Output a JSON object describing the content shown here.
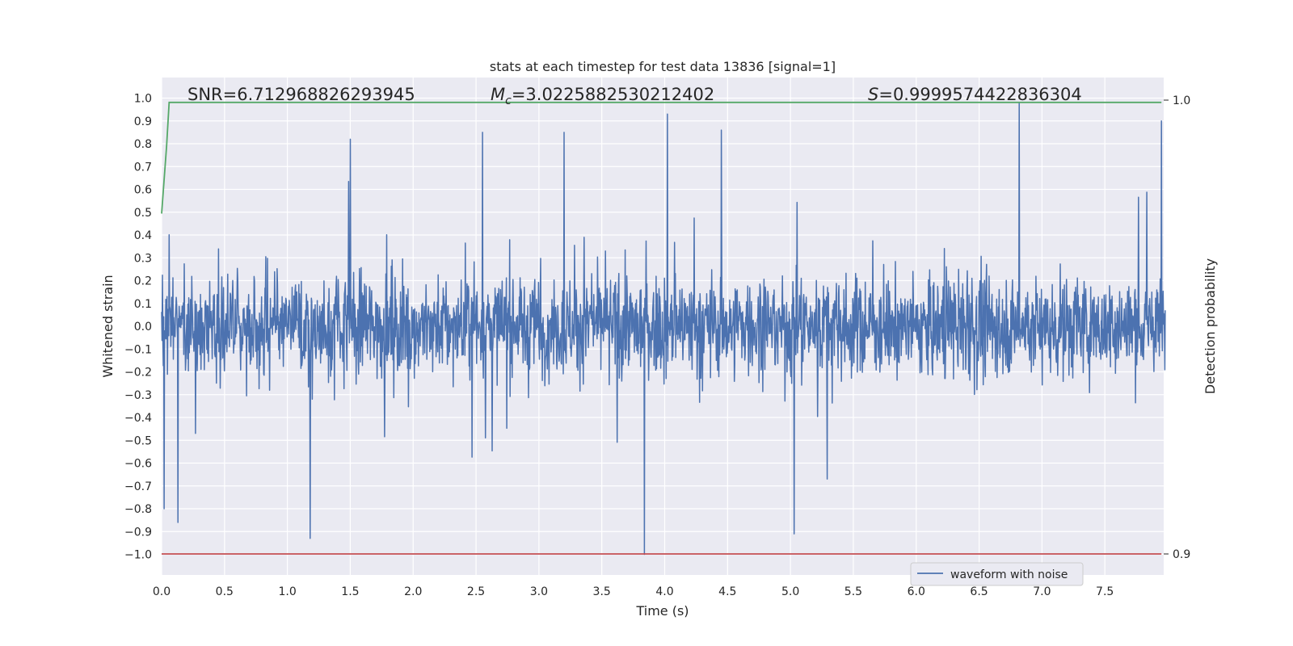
{
  "chart_data": {
    "type": "line",
    "title": "stats at each timestep for test data 13836 [signal=1]",
    "xlabel": "Time (s)",
    "ylabel": "Whitened strain",
    "y2label": "Detection probability",
    "xlim": [
      0.0,
      8.0
    ],
    "ylim": [
      -1.1,
      1.1
    ],
    "y2lim": [
      0.895,
      1.001
    ],
    "x_ticks": [
      "0.0",
      "0.5",
      "1.0",
      "1.5",
      "2.0",
      "2.5",
      "3.0",
      "3.5",
      "4.0",
      "4.5",
      "5.0",
      "5.5",
      "6.0",
      "6.5",
      "7.0",
      "7.5"
    ],
    "y_ticks": [
      "1.0",
      "0.9",
      "0.8",
      "0.7",
      "0.6",
      "0.5",
      "0.4",
      "0.3",
      "0.2",
      "0.1",
      "0.0",
      "−0.1",
      "−0.2",
      "−0.3",
      "−0.4",
      "−0.5",
      "−0.6",
      "−0.7",
      "−0.8",
      "−0.9",
      "−1.0"
    ],
    "y2_ticks": [
      "1.0",
      "0.9"
    ],
    "grid": true,
    "legend_placement": "lower-right",
    "annotations": {
      "snr": "SNR=6.712968826293945",
      "mc_symbol": "M",
      "mc_sub": "c",
      "mc_value": "=3.0225882530212402",
      "s_symbol": "S",
      "s_value": "=0.9999574422836304"
    },
    "series": [
      {
        "name": "waveform with noise",
        "color": "#4c72b0",
        "axis": "left",
        "description_values": "dense noisy strain, typical amplitude about ±0.4, extremes reaching about 0.95 and -1.0",
        "notable_peaks": [
          {
            "x": 0.02,
            "y": 0.8
          },
          {
            "x": 0.02,
            "y": -0.8
          },
          {
            "x": 0.13,
            "y": -0.86
          },
          {
            "x": 1.18,
            "y": -0.93
          },
          {
            "x": 1.5,
            "y": 0.82
          },
          {
            "x": 2.55,
            "y": 0.85
          },
          {
            "x": 3.2,
            "y": 0.85
          },
          {
            "x": 3.84,
            "y": -1.0
          },
          {
            "x": 4.02,
            "y": 0.93
          },
          {
            "x": 4.45,
            "y": 0.86
          },
          {
            "x": 5.03,
            "y": -0.91
          },
          {
            "x": 6.82,
            "y": 0.98
          },
          {
            "x": 7.95,
            "y": 0.9
          }
        ]
      },
      {
        "name": "",
        "color": "#55a868",
        "axis": "right",
        "x": [
          0.0,
          0.04,
          0.06,
          7.95
        ],
        "y": [
          0.975,
          0.99,
          0.9995,
          0.9995
        ]
      },
      {
        "name": "",
        "color": "#c44e52",
        "axis": "right",
        "x": [
          0.0,
          7.95
        ],
        "y": [
          0.9,
          0.9
        ]
      }
    ],
    "colors": {
      "plot_background": "#eaeaf2",
      "grid": "#ffffff",
      "text": "#262626"
    }
  }
}
